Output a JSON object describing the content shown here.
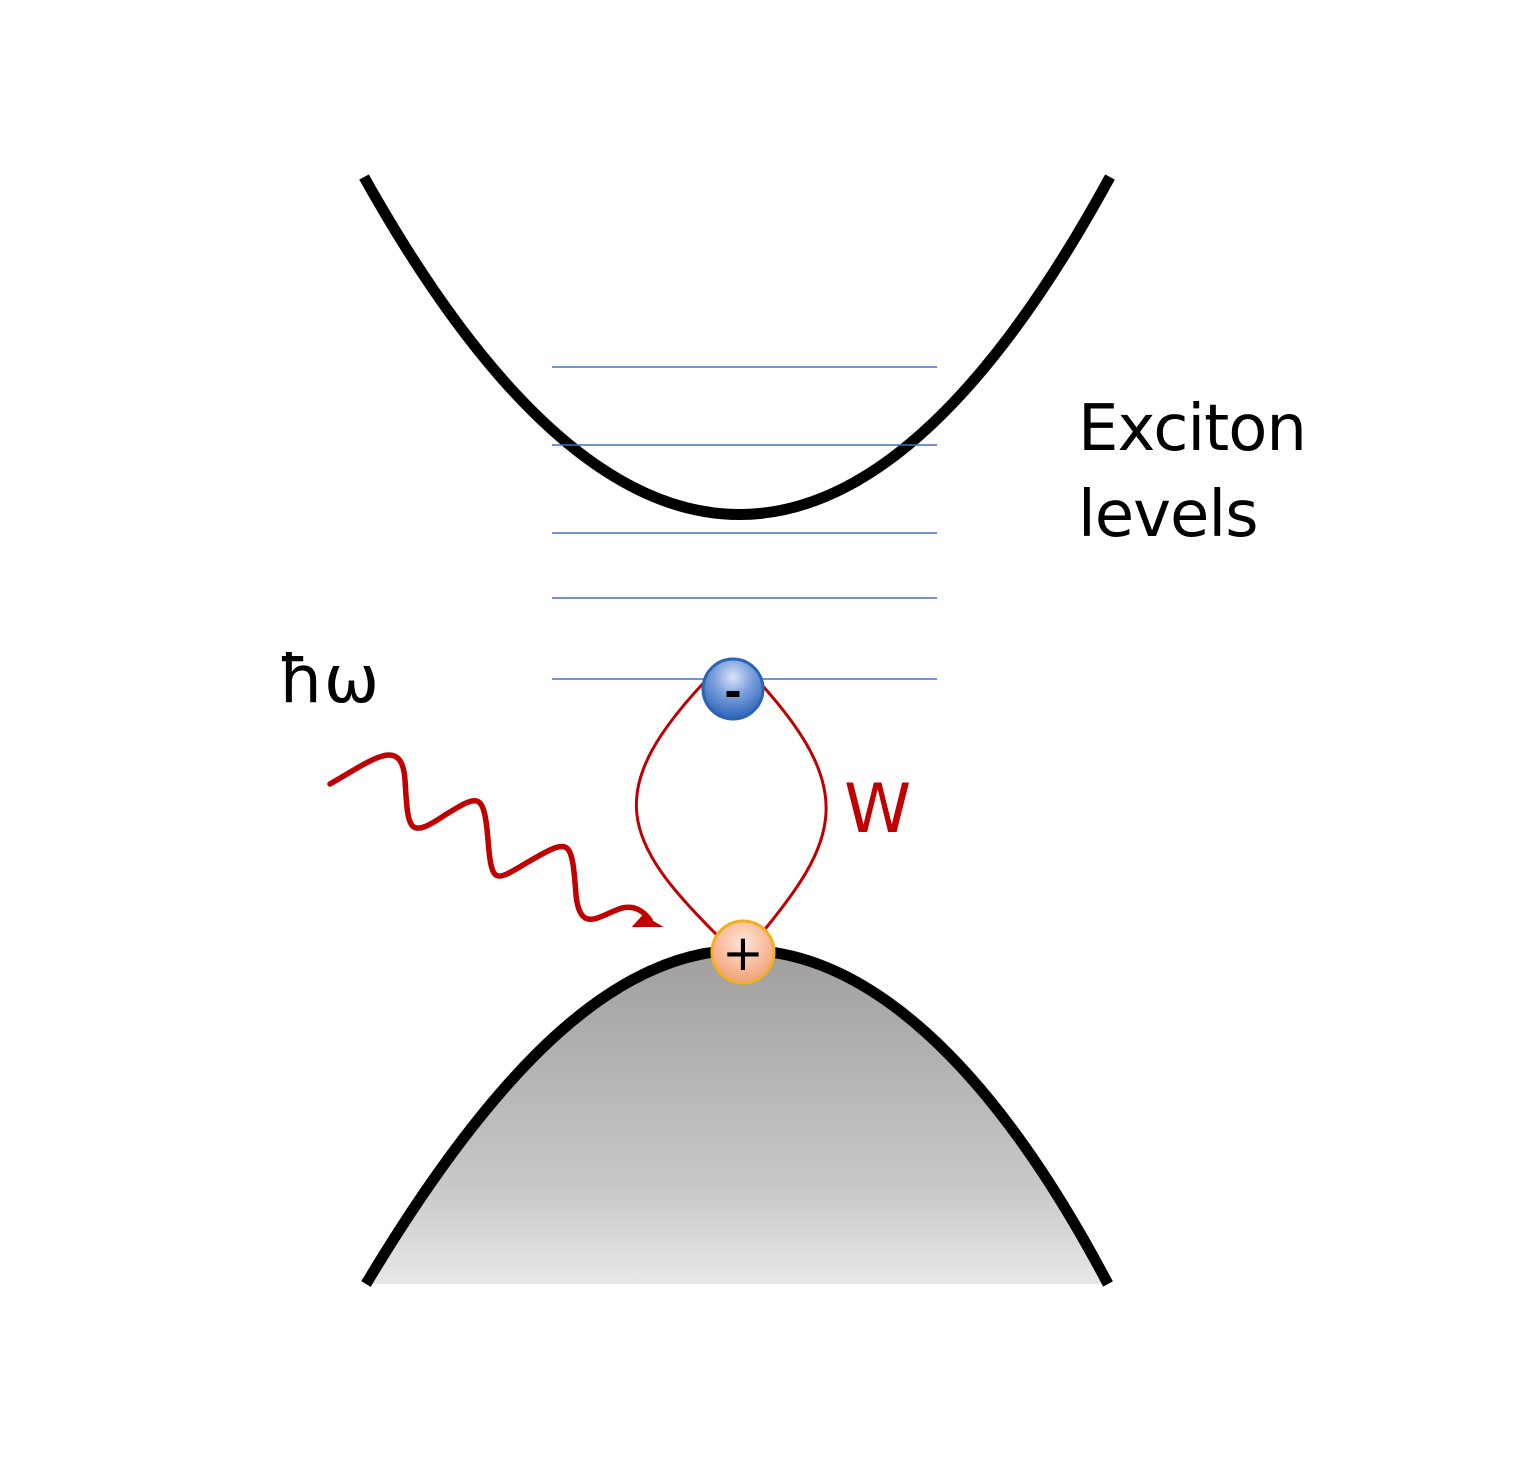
{
  "labels": {
    "exciton_line1": "Exciton",
    "exciton_line2": "levels",
    "photon": "ħω",
    "interaction": "W",
    "electron_sign": "-",
    "hole_sign": "+"
  },
  "colors": {
    "band": "#000000",
    "level_line": "#4a6fc4",
    "interaction": "#c00000",
    "valence_fill_top": "#a5a3a2",
    "valence_fill_bottom": "#e8e8e8",
    "electron": "#2f6fc0",
    "hole": "#f2a07a"
  },
  "exciton_level_count": 5
}
